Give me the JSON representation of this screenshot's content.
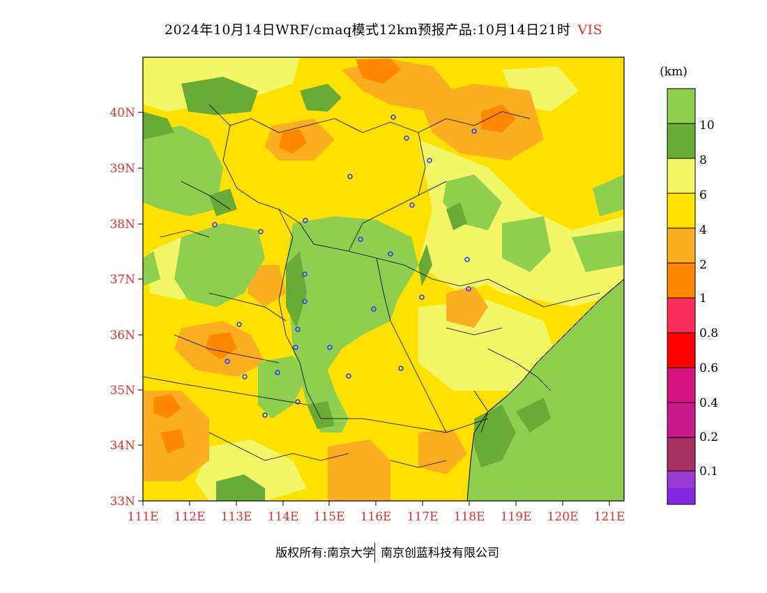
{
  "title": {
    "main": "2024年10月14日WRF/cmaq模式12km预报产品:10月14日21时",
    "variable": "VIS"
  },
  "lat_labels": [
    "40N",
    "39N",
    "38N",
    "37N",
    "36N",
    "35N",
    "34N",
    "33N"
  ],
  "lon_labels": [
    "111E",
    "112E",
    "113E",
    "114E",
    "115E",
    "116E",
    "117E",
    "118E",
    "119E",
    "120E",
    "121E"
  ],
  "colorbar": {
    "unit": "(km)",
    "bins": [
      {
        "color": "#8fce4f"
      },
      {
        "color": "#6aab37"
      },
      {
        "color": "#f2f566"
      },
      {
        "color": "#ffe100"
      },
      {
        "color": "#fcae22"
      },
      {
        "color": "#ff8800"
      },
      {
        "color": "#fa2e5a"
      },
      {
        "color": "#ff0000"
      },
      {
        "color": "#d4157f"
      },
      {
        "color": "#c81a8a"
      },
      {
        "color": "#a83060"
      },
      {
        "color": "#9a3ad0"
      },
      {
        "color": "#8028e0"
      }
    ],
    "tick_labels": [
      "10",
      "8",
      "6",
      "4",
      "2",
      "1",
      "0.8",
      "0.6",
      "0.4",
      "0.2",
      "0.1"
    ]
  },
  "footer": {
    "left": "版权所有:南京大学",
    "right": "南京创蓝科技有限公司"
  }
}
